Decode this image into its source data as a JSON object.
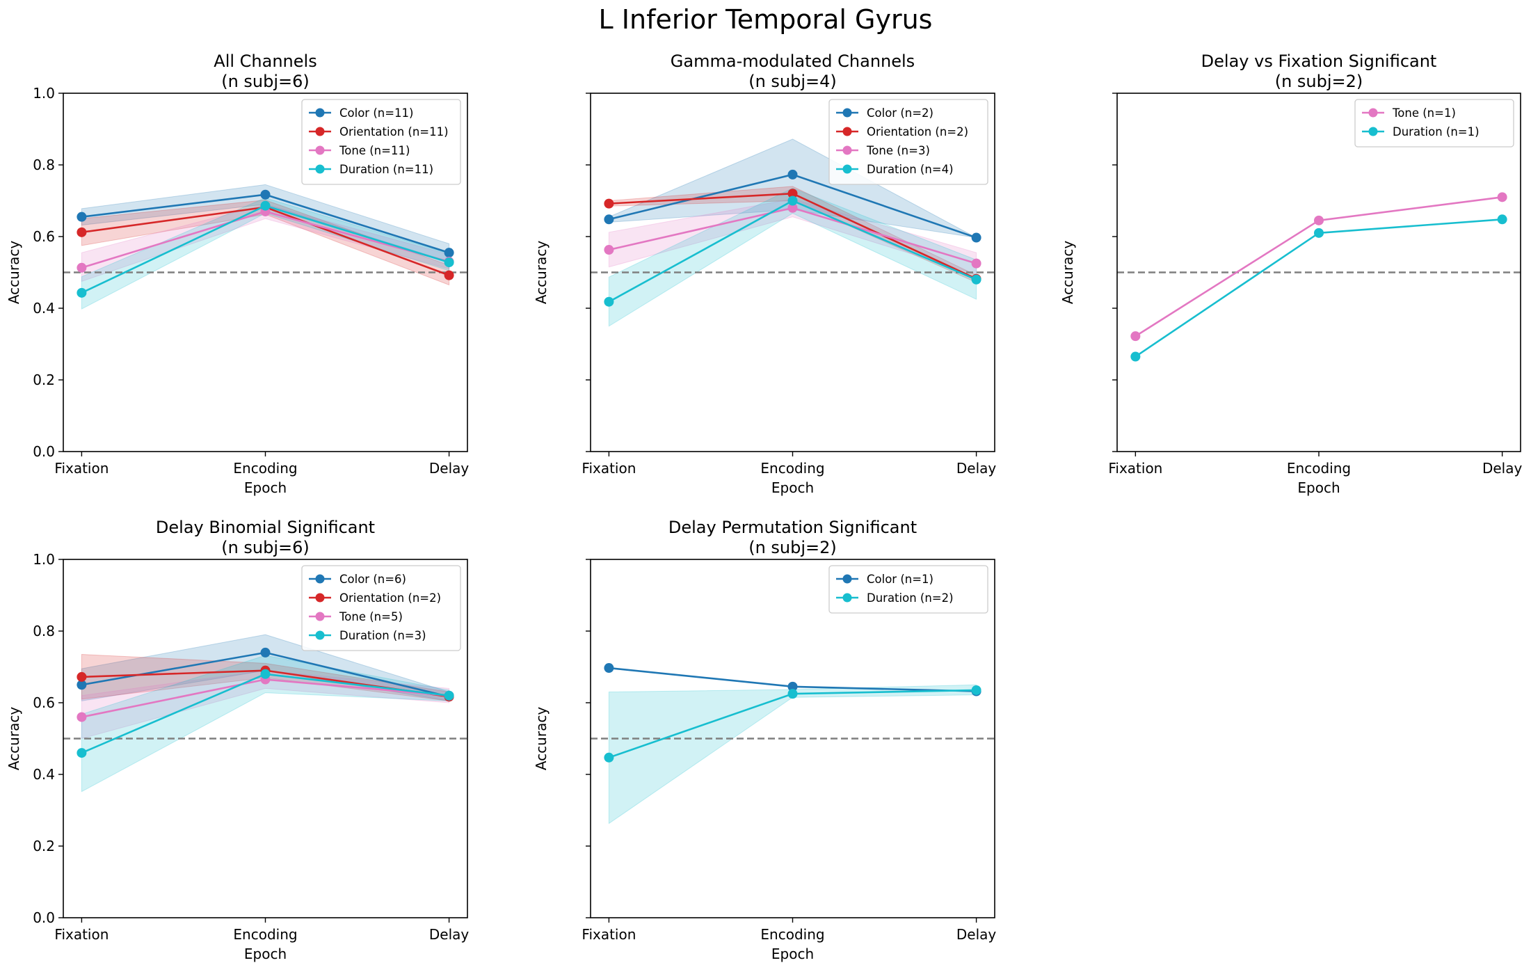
{
  "figure_title": "L Inferior Temporal Gyrus",
  "colors": {
    "Color": "#1f77b4",
    "Orientation": "#d62728",
    "Tone": "#e377c2",
    "Duration": "#17becf",
    "chance_line": "#7f7f7f"
  },
  "chart_data": [
    {
      "type": "line",
      "title": "All Channels\n(n subj=6)",
      "xlabel": "Epoch",
      "ylabel": "Accuracy",
      "categories": [
        "Fixation",
        "Encoding",
        "Delay"
      ],
      "ylim": [
        0.0,
        1.0
      ],
      "yticks": [
        "0.0",
        "0.2",
        "0.4",
        "0.6",
        "0.8",
        "1.0"
      ],
      "show_ytick_labels": true,
      "chance_level": 0.5,
      "legend_position": "upper-right",
      "series": [
        {
          "name": "Color (n=11)",
          "key": "Color",
          "values": [
            0.655,
            0.717,
            0.555
          ],
          "lower": [
            0.632,
            0.69,
            0.53
          ],
          "upper": [
            0.678,
            0.745,
            0.58
          ]
        },
        {
          "name": "Orientation (n=11)",
          "key": "Orientation",
          "values": [
            0.612,
            0.682,
            0.492
          ],
          "lower": [
            0.575,
            0.662,
            0.465
          ],
          "upper": [
            0.65,
            0.702,
            0.52
          ]
        },
        {
          "name": "Tone (n=11)",
          "key": "Tone",
          "values": [
            0.513,
            0.67,
            0.53
          ],
          "lower": [
            0.475,
            0.65,
            0.51
          ],
          "upper": [
            0.555,
            0.69,
            0.55
          ]
        },
        {
          "name": "Duration (n=11)",
          "key": "Duration",
          "values": [
            0.443,
            0.686,
            0.528
          ],
          "lower": [
            0.398,
            0.665,
            0.505
          ],
          "upper": [
            0.488,
            0.708,
            0.552
          ]
        }
      ]
    },
    {
      "type": "line",
      "title": "Gamma-modulated Channels\n(n subj=4)",
      "xlabel": "Epoch",
      "ylabel": "Accuracy",
      "categories": [
        "Fixation",
        "Encoding",
        "Delay"
      ],
      "ylim": [
        0.0,
        1.0
      ],
      "yticks": [
        "0.0",
        "0.2",
        "0.4",
        "0.6",
        "0.8",
        "1.0"
      ],
      "show_ytick_labels": false,
      "chance_level": 0.5,
      "legend_position": "upper-right",
      "series": [
        {
          "name": "Color (n=2)",
          "key": "Color",
          "values": [
            0.648,
            0.773,
            0.597
          ],
          "lower": [
            0.64,
            0.675,
            0.597
          ],
          "upper": [
            0.655,
            0.872,
            0.597
          ]
        },
        {
          "name": "Orientation (n=2)",
          "key": "Orientation",
          "values": [
            0.692,
            0.72,
            0.482
          ],
          "lower": [
            0.685,
            0.7,
            0.472
          ],
          "upper": [
            0.7,
            0.74,
            0.492
          ]
        },
        {
          "name": "Tone (n=3)",
          "key": "Tone",
          "values": [
            0.563,
            0.68,
            0.525
          ],
          "lower": [
            0.515,
            0.655,
            0.495
          ],
          "upper": [
            0.612,
            0.705,
            0.555
          ]
        },
        {
          "name": "Duration (n=4)",
          "key": "Duration",
          "values": [
            0.418,
            0.7,
            0.48
          ],
          "lower": [
            0.35,
            0.665,
            0.425
          ],
          "upper": [
            0.487,
            0.735,
            0.535
          ]
        }
      ]
    },
    {
      "type": "line",
      "title": "Delay vs Fixation Significant\n(n subj=2)",
      "xlabel": "Epoch",
      "ylabel": "Accuracy",
      "categories": [
        "Fixation",
        "Encoding",
        "Delay"
      ],
      "ylim": [
        0.0,
        1.0
      ],
      "yticks": [
        "0.0",
        "0.2",
        "0.4",
        "0.6",
        "0.8",
        "1.0"
      ],
      "show_ytick_labels": false,
      "chance_level": 0.5,
      "legend_position": "upper-right",
      "series": [
        {
          "name": "Tone (n=1)",
          "key": "Tone",
          "values": [
            0.322,
            0.645,
            0.71
          ]
        },
        {
          "name": "Duration (n=1)",
          "key": "Duration",
          "values": [
            0.265,
            0.61,
            0.648
          ]
        }
      ]
    },
    {
      "type": "line",
      "title": "Delay Binomial Significant\n(n subj=6)",
      "xlabel": "Epoch",
      "ylabel": "Accuracy",
      "categories": [
        "Fixation",
        "Encoding",
        "Delay"
      ],
      "ylim": [
        0.0,
        1.0
      ],
      "yticks": [
        "0.0",
        "0.2",
        "0.4",
        "0.6",
        "0.8",
        "1.0"
      ],
      "show_ytick_labels": true,
      "chance_level": 0.5,
      "legend_position": "upper-right",
      "series": [
        {
          "name": "Color (n=6)",
          "key": "Color",
          "values": [
            0.65,
            0.74,
            0.617
          ],
          "lower": [
            0.605,
            0.69,
            0.605
          ],
          "upper": [
            0.695,
            0.79,
            0.63
          ]
        },
        {
          "name": "Orientation (n=2)",
          "key": "Orientation",
          "values": [
            0.672,
            0.69,
            0.617
          ],
          "lower": [
            0.61,
            0.67,
            0.605
          ],
          "upper": [
            0.735,
            0.71,
            0.63
          ]
        },
        {
          "name": "Tone (n=5)",
          "key": "Tone",
          "values": [
            0.56,
            0.665,
            0.62
          ],
          "lower": [
            0.5,
            0.64,
            0.6
          ],
          "upper": [
            0.62,
            0.69,
            0.64
          ]
        },
        {
          "name": "Duration (n=3)",
          "key": "Duration",
          "values": [
            0.46,
            0.68,
            0.62
          ],
          "lower": [
            0.352,
            0.628,
            0.605
          ],
          "upper": [
            0.568,
            0.732,
            0.635
          ]
        }
      ]
    },
    {
      "type": "line",
      "title": "Delay Permutation Significant\n(n subj=2)",
      "xlabel": "Epoch",
      "ylabel": "Accuracy",
      "categories": [
        "Fixation",
        "Encoding",
        "Delay"
      ],
      "ylim": [
        0.0,
        1.0
      ],
      "yticks": [
        "0.0",
        "0.2",
        "0.4",
        "0.6",
        "0.8",
        "1.0"
      ],
      "show_ytick_labels": false,
      "chance_level": 0.5,
      "legend_position": "upper-right",
      "series": [
        {
          "name": "Color (n=1)",
          "key": "Color",
          "values": [
            0.697,
            0.645,
            0.632
          ]
        },
        {
          "name": "Duration (n=2)",
          "key": "Duration",
          "values": [
            0.447,
            0.625,
            0.635
          ],
          "lower": [
            0.263,
            0.615,
            0.622
          ],
          "upper": [
            0.63,
            0.637,
            0.65
          ]
        }
      ]
    }
  ]
}
